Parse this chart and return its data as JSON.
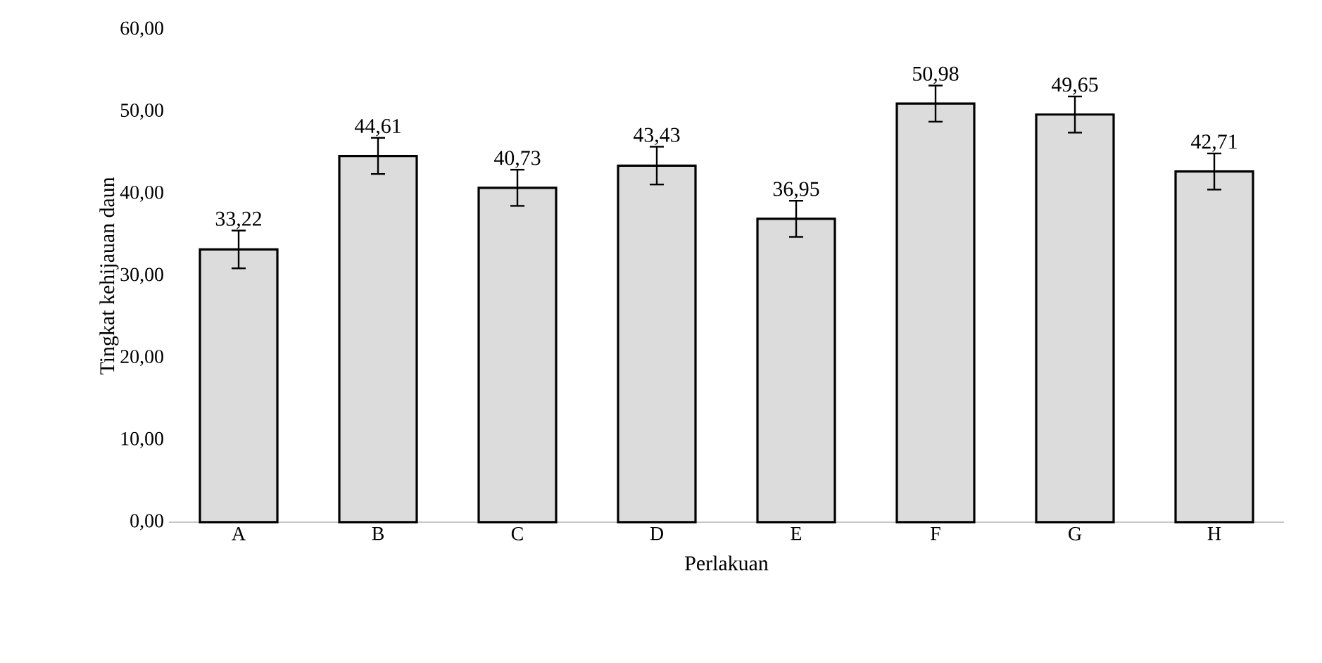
{
  "chart_data": {
    "type": "bar",
    "xlabel": "Perlakuan",
    "ylabel": "Tingkat kehijauan daun",
    "categories": [
      "A",
      "B",
      "C",
      "D",
      "E",
      "F",
      "G",
      "H"
    ],
    "values": [
      33.22,
      44.61,
      40.73,
      43.43,
      36.95,
      50.98,
      49.65,
      42.71
    ],
    "errors": [
      2.3,
      2.2,
      2.2,
      2.3,
      2.2,
      2.2,
      2.2,
      2.2
    ],
    "value_labels": [
      "33,22",
      "44,61",
      "40,73",
      "43,43",
      "36,95",
      "50,98",
      "49,65",
      "42,71"
    ],
    "color": "#dcdcdc",
    "ylim": [
      0,
      60
    ],
    "yticks": [
      {
        "value": 0,
        "label": "0,00"
      },
      {
        "value": 10,
        "label": "10,00"
      },
      {
        "value": 20,
        "label": "20,00"
      },
      {
        "value": 30,
        "label": "30,00"
      },
      {
        "value": 40,
        "label": "40,00"
      },
      {
        "value": 50,
        "label": "50,00"
      },
      {
        "value": 60,
        "label": "60,00"
      }
    ]
  }
}
